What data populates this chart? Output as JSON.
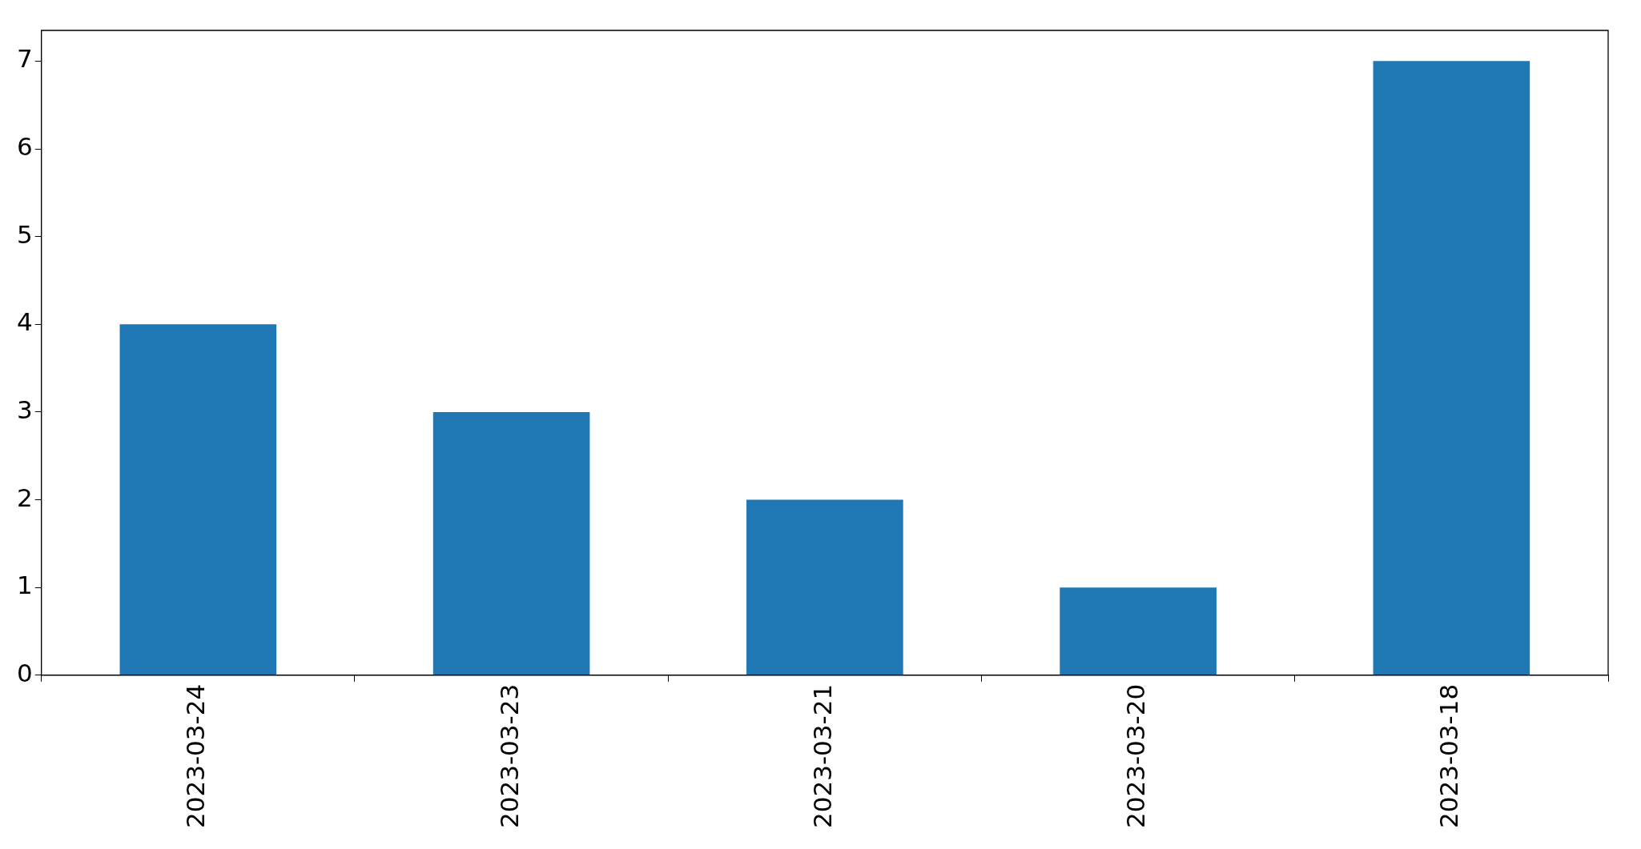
{
  "chart_data": {
    "type": "bar",
    "categories": [
      "2023-03-24",
      "2023-03-23",
      "2023-03-21",
      "2023-03-20",
      "2023-03-18"
    ],
    "values": [
      4,
      3,
      2,
      1,
      7
    ],
    "color": "#1f77b4",
    "ylim": [
      0,
      7.35
    ],
    "yticks": [
      0,
      1,
      2,
      3,
      4,
      5,
      6,
      7
    ],
    "grid": false,
    "legend": false
  }
}
